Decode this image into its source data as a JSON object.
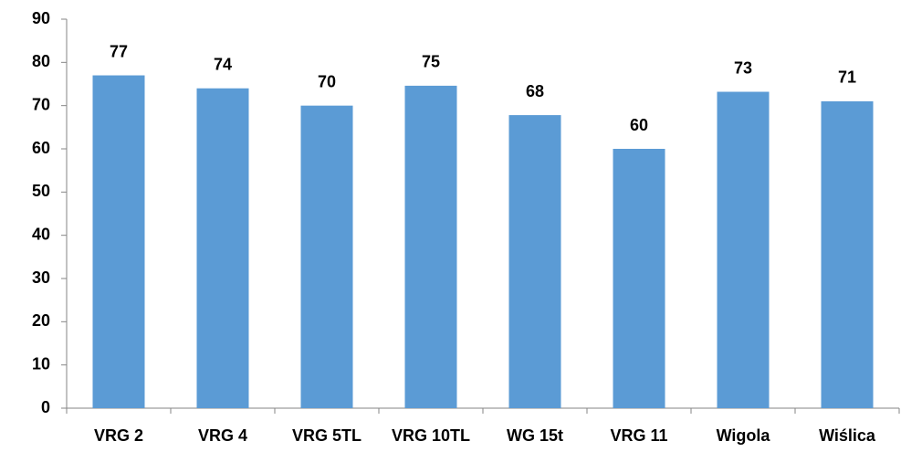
{
  "chart_data": {
    "type": "bar",
    "categories": [
      "VRG 2",
      "VRG 4",
      "VRG 5TL",
      "VRG 10TL",
      "WG 15t",
      "VRG 11",
      "Wigola",
      "Wiślica"
    ],
    "values": [
      77,
      74,
      70,
      74.6,
      67.8,
      60,
      73.2,
      71
    ],
    "value_labels": [
      "77",
      "74",
      "70",
      "75",
      "68",
      "60",
      "73",
      "71"
    ],
    "color": "#5b9bd5",
    "ylim": [
      0,
      90
    ],
    "yticks": [
      0,
      10,
      20,
      30,
      40,
      50,
      60,
      70,
      80,
      90
    ],
    "grid": false
  }
}
